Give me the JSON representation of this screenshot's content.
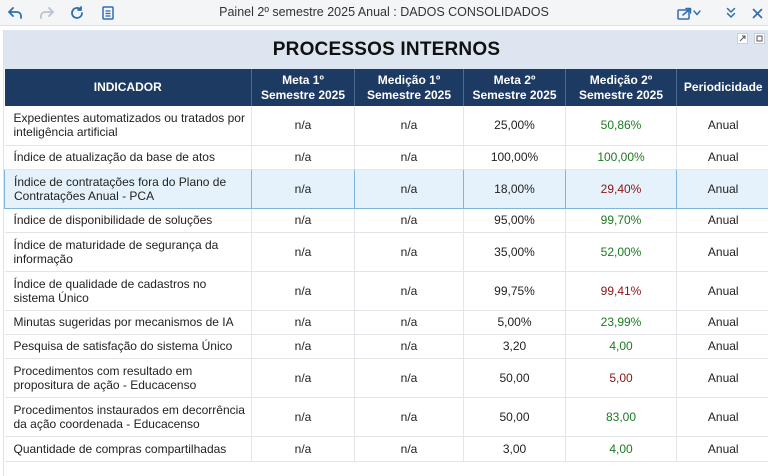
{
  "window": {
    "title": "Painel 2º semestre 2025 Anual : DADOS CONSOLIDADOS"
  },
  "toolbar": {
    "icons": [
      "undo-icon",
      "redo-icon",
      "refresh-icon",
      "pages-icon",
      "share-icon",
      "chevron-down-icon",
      "collapse-icon",
      "close-icon"
    ],
    "accent": "#2f6db5"
  },
  "report": {
    "title": "PROCESSOS INTERNOS",
    "header_bg": "#1d3a63",
    "title_band_bg": "#dce5f0",
    "columns": [
      "INDICADOR",
      "Meta 1º Semestre 2025",
      "Medição 1º Semestre 2025",
      "Meta 2º Semestre 2025",
      "Medição 2º Semestre 2025",
      "Periodicidade"
    ],
    "rows": [
      {
        "indicator": "Expedientes automatizados ou tratados por inteligência artificial",
        "meta1": "n/a",
        "med1": "n/a",
        "meta2": "25,00%",
        "med2": "50,86%",
        "status": "green",
        "period": "Anual"
      },
      {
        "indicator": "Índice de atualização da base de atos",
        "meta1": "n/a",
        "med1": "n/a",
        "meta2": "100,00%",
        "med2": "100,00%",
        "status": "green",
        "period": "Anual"
      },
      {
        "indicator": "Índice de contratações fora do Plano de Contratações Anual - PCA",
        "meta1": "n/a",
        "med1": "n/a",
        "meta2": "18,00%",
        "med2": "29,40%",
        "status": "red",
        "period": "Anual"
      },
      {
        "indicator": "Índice de disponibilidade de soluções",
        "meta1": "n/a",
        "med1": "n/a",
        "meta2": "95,00%",
        "med2": "99,70%",
        "status": "green",
        "period": "Anual"
      },
      {
        "indicator": "Índice de maturidade de segurança da informação",
        "meta1": "n/a",
        "med1": "n/a",
        "meta2": "35,00%",
        "med2": "52,00%",
        "status": "green",
        "period": "Anual"
      },
      {
        "indicator": "Índice de qualidade de cadastros no sistema Único",
        "meta1": "n/a",
        "med1": "n/a",
        "meta2": "99,75%",
        "med2": "99,41%",
        "status": "red",
        "period": "Anual"
      },
      {
        "indicator": "Minutas sugeridas por mecanismos de IA",
        "meta1": "n/a",
        "med1": "n/a",
        "meta2": "5,00%",
        "med2": "23,99%",
        "status": "green",
        "period": "Anual"
      },
      {
        "indicator": "Pesquisa de satisfação do sistema Único",
        "meta1": "n/a",
        "med1": "n/a",
        "meta2": "3,20",
        "med2": "4,00",
        "status": "green",
        "period": "Anual"
      },
      {
        "indicator": "Procedimentos com resultado em propositura de ação - Educacenso",
        "meta1": "n/a",
        "med1": "n/a",
        "meta2": "50,00",
        "med2": "5,00",
        "status": "red",
        "period": "Anual"
      },
      {
        "indicator": "Procedimentos instaurados em decorrência da ação coordenada - Educacenso",
        "meta1": "n/a",
        "med1": "n/a",
        "meta2": "50,00",
        "med2": "83,00",
        "status": "green",
        "period": "Anual"
      },
      {
        "indicator": "Quantidade de compras compartilhadas",
        "meta1": "n/a",
        "med1": "n/a",
        "meta2": "3,00",
        "med2": "4,00",
        "status": "green",
        "period": "Anual"
      }
    ],
    "selected_row": 2,
    "status_colors": {
      "green": "#1c7a21",
      "red": "#8b1313"
    }
  }
}
